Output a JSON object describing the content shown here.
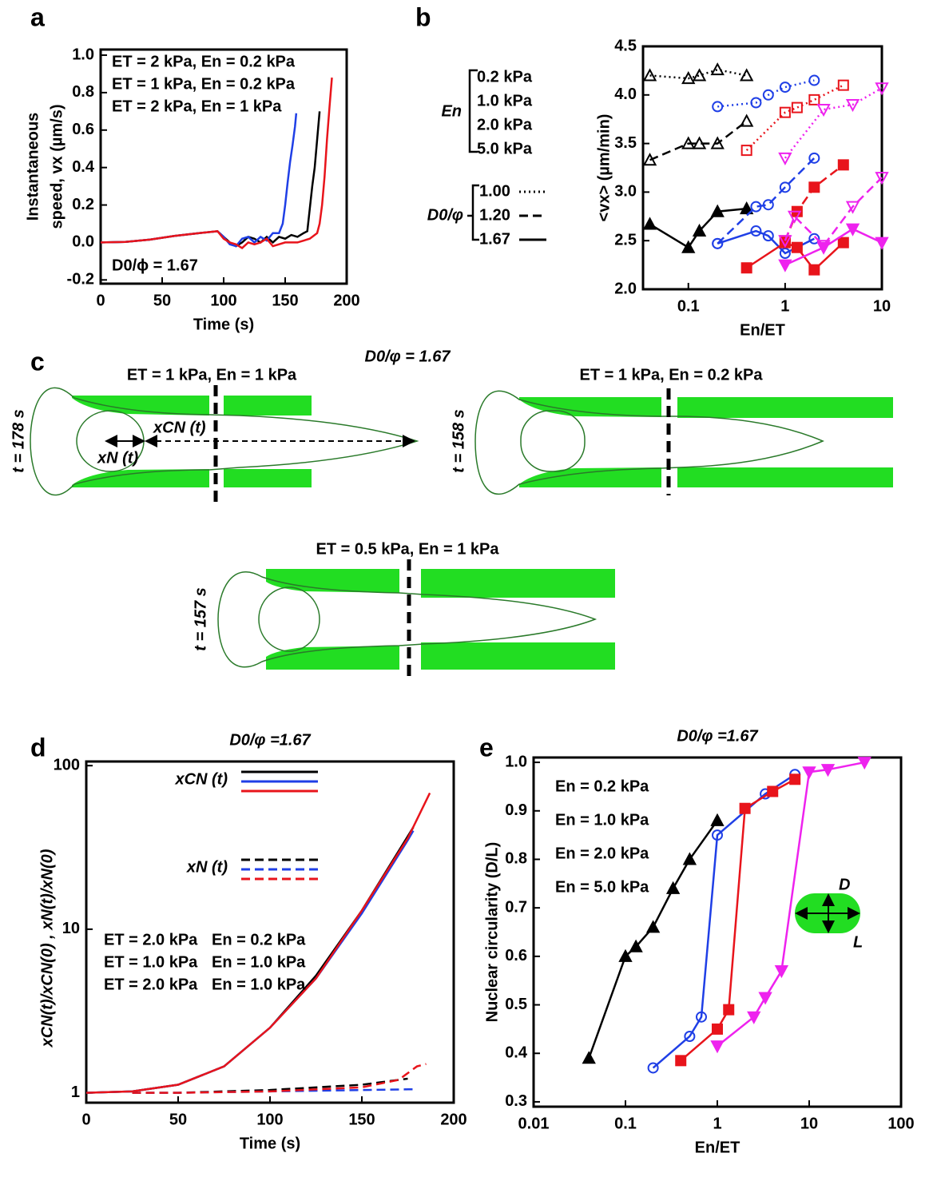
{
  "panel_labels": [
    "a",
    "b",
    "c",
    "d",
    "e"
  ],
  "chart_data": [
    {
      "type": "line",
      "xlabel": "Time (s)",
      "ylabel": [
        "Instantaneous",
        "speed, vx (µm/s)"
      ],
      "xlim": [
        0,
        200
      ],
      "xticks": [
        0,
        50,
        100,
        150,
        200
      ],
      "ylim": [
        -0.22,
        1.03
      ],
      "yticks": [
        -0.2,
        {
          "value": 0,
          "label": "0.0"
        },
        0.2,
        0.4,
        0.6,
        0.8,
        {
          "value": 1,
          "label": "1.0"
        }
      ],
      "annotation": "D0/ϕ = 1.67",
      "series": [
        {
          "name": "ET = 2 kPa, En = 0.2 kPa",
          "color": "#000000",
          "dash": "solid",
          "x": [
            0,
            20,
            40,
            60,
            80,
            95,
            100,
            105,
            110,
            115,
            120,
            125,
            130,
            135,
            140,
            145,
            150,
            155,
            160,
            165,
            168,
            170,
            172,
            174,
            176,
            178
          ],
          "values": [
            0,
            0.003,
            0.015,
            0.035,
            0.05,
            0.06,
            0.03,
            0.0,
            -0.02,
            0.0,
            0.03,
            0.02,
            0.0,
            0.03,
            0.0,
            0.03,
            0.02,
            0.04,
            0.03,
            0.05,
            0.06,
            0.18,
            0.3,
            0.4,
            0.55,
            0.7
          ]
        },
        {
          "name": "ET = 1 kPa, En = 0.2 kPa",
          "color": "#1f3fe6",
          "dash": "solid",
          "x": [
            0,
            20,
            40,
            60,
            80,
            95,
            100,
            105,
            110,
            115,
            120,
            125,
            130,
            135,
            140,
            145,
            148,
            150,
            152,
            154,
            156,
            158,
            159
          ],
          "values": [
            0,
            0.003,
            0.015,
            0.035,
            0.05,
            0.06,
            0.03,
            -0.01,
            -0.02,
            0.02,
            0.03,
            0.0,
            0.03,
            0.01,
            0.05,
            0.05,
            0.1,
            0.2,
            0.32,
            0.43,
            0.52,
            0.62,
            0.69
          ]
        },
        {
          "name": "ET = 2 kPa, En = 1 kPa",
          "color": "#e8141b",
          "dash": "solid",
          "x": [
            0,
            20,
            40,
            60,
            80,
            95,
            100,
            105,
            110,
            115,
            120,
            125,
            130,
            135,
            140,
            150,
            160,
            170,
            176,
            178,
            180,
            182,
            184,
            186,
            188
          ],
          "values": [
            0,
            0.003,
            0.015,
            0.035,
            0.05,
            0.06,
            0.02,
            0.0,
            -0.01,
            -0.03,
            0.0,
            -0.01,
            0.0,
            0.02,
            -0.02,
            0.0,
            0.0,
            0.02,
            0.05,
            0.1,
            0.2,
            0.35,
            0.55,
            0.72,
            0.88
          ]
        }
      ]
    },
    {
      "type": "line",
      "xscale": "log",
      "xlabel": "En/ET",
      "ylabel": "<vx> (µm/min)",
      "xlim": [
        0.034,
        10
      ],
      "xticks": [
        0.1,
        1,
        10
      ],
      "ylim": [
        2.0,
        4.5
      ],
      "yticks": [
        {
          "value": 2,
          "label": "2.0"
        },
        2.5,
        {
          "value": 3,
          "label": "3.0"
        },
        3.5,
        {
          "value": 4,
          "label": "4.0"
        },
        4.5
      ],
      "legend_groups": [
        {
          "title": "En",
          "entries": [
            {
              "label": "0.2 kPa",
              "color": "#000000"
            },
            {
              "label": "1.0 kPa",
              "color": "#1f3fe6"
            },
            {
              "label": "2.0 kPa",
              "color": "#e8141b"
            },
            {
              "label": "5.0 kPa",
              "color": "#ee22ee"
            }
          ]
        },
        {
          "title": "D0/φ",
          "entries": [
            {
              "label": "1.00",
              "dash": "dotted"
            },
            {
              "label": "1.20",
              "dash": "dashed"
            },
            {
              "label": "1.67",
              "dash": "solid"
            }
          ]
        }
      ],
      "series": [
        {
          "color": "#000000",
          "dash": "dotted",
          "marker": "^",
          "filled": false,
          "x": [
            0.04,
            0.1,
            0.13,
            0.2,
            0.4
          ],
          "values": [
            4.2,
            4.17,
            4.2,
            4.26,
            4.2
          ]
        },
        {
          "color": "#000000",
          "dash": "dashed",
          "marker": "^",
          "filled": false,
          "x": [
            0.04,
            0.1,
            0.13,
            0.2,
            0.4
          ],
          "values": [
            3.33,
            3.5,
            3.5,
            3.5,
            3.73
          ]
        },
        {
          "color": "#000000",
          "dash": "solid",
          "marker": "^",
          "filled": true,
          "x": [
            0.04,
            0.1,
            0.13,
            0.2,
            0.4
          ],
          "values": [
            2.67,
            2.43,
            2.6,
            2.8,
            2.83
          ]
        },
        {
          "color": "#1f3fe6",
          "dash": "dotted",
          "marker": "o",
          "filled": false,
          "x": [
            0.2,
            0.5,
            0.67,
            1,
            2
          ],
          "values": [
            3.88,
            3.92,
            4.0,
            4.08,
            4.15
          ]
        },
        {
          "color": "#1f3fe6",
          "dash": "dashed",
          "marker": "o",
          "filled": false,
          "x": [
            0.2,
            0.5,
            0.67,
            1,
            2
          ],
          "values": [
            2.47,
            2.85,
            2.87,
            3.05,
            3.35
          ]
        },
        {
          "color": "#1f3fe6",
          "dash": "solid",
          "marker": "o",
          "filled": false,
          "x": [
            0.2,
            0.5,
            0.67,
            1,
            2
          ],
          "values": [
            2.47,
            2.6,
            2.55,
            2.37,
            2.52
          ]
        },
        {
          "color": "#e8141b",
          "dash": "dotted",
          "marker": "s",
          "filled": false,
          "x": [
            0.4,
            1,
            1.33,
            2,
            4
          ],
          "values": [
            3.43,
            3.82,
            3.87,
            3.95,
            4.1
          ]
        },
        {
          "color": "#e8141b",
          "dash": "dashed",
          "marker": "s",
          "filled": true,
          "x": [
            1,
            1.33,
            2,
            4
          ],
          "values": [
            2.5,
            2.8,
            3.05,
            3.28
          ]
        },
        {
          "color": "#e8141b",
          "dash": "solid",
          "marker": "s",
          "filled": true,
          "x": [
            0.4,
            1,
            1.33,
            2,
            4
          ],
          "values": [
            2.22,
            2.48,
            2.43,
            2.2,
            2.48
          ]
        },
        {
          "color": "#ee22ee",
          "dash": "dotted",
          "marker": "v",
          "filled": false,
          "x": [
            1,
            2.5,
            5,
            10
          ],
          "values": [
            3.35,
            3.85,
            3.9,
            4.07
          ]
        },
        {
          "color": "#ee22ee",
          "dash": "dashed",
          "marker": "v",
          "filled": false,
          "x": [
            1,
            1.25,
            2.5,
            5,
            10
          ],
          "values": [
            2.5,
            2.75,
            2.45,
            2.85,
            3.15
          ]
        },
        {
          "color": "#ee22ee",
          "dash": "solid",
          "marker": "v",
          "filled": true,
          "x": [
            1,
            2.5,
            5,
            10
          ],
          "values": [
            2.25,
            2.43,
            2.62,
            2.48
          ]
        }
      ]
    },
    {
      "type": "line",
      "yscale": "log",
      "title": "D0/φ =1.67",
      "xlabel": "Time (s)",
      "ylabel": "xCN(t)/xCN(0) ,  xN(t)/xN(0)",
      "xlim": [
        0,
        200
      ],
      "xticks": [
        0,
        50,
        100,
        150,
        200
      ],
      "ylim": [
        0.87,
        106
      ],
      "yticks": [
        1,
        10,
        100
      ],
      "legend": [
        {
          "label": "xCN (t)",
          "dash": "solid"
        },
        {
          "label": "xN (t)",
          "dash": "dashed"
        }
      ],
      "annotations": [
        {
          "color": "#000000",
          "texts": [
            "ET = 2.0 kPa",
            "En = 0.2 kPa"
          ]
        },
        {
          "color": "#1f3fe6",
          "texts": [
            "ET = 1.0 kPa",
            "En = 1.0 kPa"
          ]
        },
        {
          "color": "#e8141b",
          "texts": [
            "ET = 2.0 kPa",
            "En = 1.0 kPa"
          ]
        }
      ],
      "series": [
        {
          "color": "#000000",
          "dash": "solid",
          "x": [
            0,
            25,
            50,
            75,
            100,
            125,
            150,
            175,
            178
          ],
          "values": [
            1,
            1.02,
            1.12,
            1.45,
            2.5,
            5.2,
            13,
            37,
            42
          ]
        },
        {
          "color": "#1f3fe6",
          "dash": "solid",
          "x": [
            0,
            25,
            50,
            75,
            100,
            125,
            150,
            175,
            178
          ],
          "values": [
            1,
            1.02,
            1.12,
            1.45,
            2.5,
            5,
            12.5,
            35,
            40
          ]
        },
        {
          "color": "#e8141b",
          "dash": "solid",
          "x": [
            0,
            25,
            50,
            75,
            100,
            125,
            150,
            175,
            187
          ],
          "values": [
            1,
            1.02,
            1.12,
            1.45,
            2.5,
            5,
            13,
            36,
            68
          ]
        },
        {
          "color": "#000000",
          "dash": "dashed",
          "x": [
            25,
            50,
            100,
            150,
            175
          ],
          "values": [
            1,
            1.0,
            1.04,
            1.12,
            1.22
          ]
        },
        {
          "color": "#1f3fe6",
          "dash": "dashed",
          "x": [
            25,
            50,
            100,
            150,
            175,
            180
          ],
          "values": [
            1,
            1.0,
            1.02,
            1.04,
            1.05,
            1.05
          ]
        },
        {
          "color": "#e8141b",
          "dash": "dashed",
          "x": [
            25,
            50,
            100,
            150,
            170,
            180,
            185
          ],
          "values": [
            1,
            1.0,
            1.02,
            1.08,
            1.2,
            1.45,
            1.5
          ]
        }
      ]
    },
    {
      "type": "line",
      "xscale": "log",
      "title": "D0/φ =1.67",
      "xlabel": "En/ET",
      "ylabel": "Nuclear circularity (D/L)",
      "xlim": [
        0.01,
        100
      ],
      "xticks": [
        0.01,
        0.1,
        1,
        10,
        100
      ],
      "ylim": [
        0.29,
        1.01
      ],
      "yticks": [
        0.3,
        0.4,
        0.5,
        0.6,
        0.7,
        0.8,
        0.9,
        {
          "value": 1,
          "label": "1.0"
        }
      ],
      "inset_labels": [
        "D",
        "L"
      ],
      "series": [
        {
          "name": "En = 0.2 kPa",
          "color": "#000000",
          "marker": "^",
          "filled": true,
          "dash": "solid",
          "x": [
            0.04,
            0.1,
            0.13,
            0.2,
            0.33,
            0.5,
            1
          ],
          "values": [
            0.39,
            0.6,
            0.62,
            0.66,
            0.74,
            0.8,
            0.88
          ]
        },
        {
          "name": "En = 1.0 kPa",
          "color": "#1f3fe6",
          "marker": "o",
          "filled": false,
          "dash": "solid",
          "x": [
            0.2,
            0.5,
            0.67,
            1,
            3.33,
            7
          ],
          "values": [
            0.37,
            0.435,
            0.475,
            0.85,
            0.935,
            0.975
          ]
        },
        {
          "name": "En = 2.0 kPa",
          "color": "#e8141b",
          "marker": "s",
          "filled": true,
          "dash": "solid",
          "x": [
            0.4,
            1,
            1.33,
            2,
            4,
            7
          ],
          "values": [
            0.385,
            0.45,
            0.49,
            0.905,
            0.94,
            0.965
          ]
        },
        {
          "name": "En = 5.0 kPa",
          "color": "#ee22ee",
          "marker": "v",
          "filled": true,
          "dash": "solid",
          "x": [
            1,
            2.5,
            3.33,
            5,
            10,
            16,
            40
          ],
          "values": [
            0.415,
            0.475,
            0.515,
            0.57,
            0.98,
            0.985,
            1.0
          ]
        }
      ]
    }
  ],
  "diagram": {
    "title": "D0/φ = 1.67",
    "panels": [
      {
        "label": "ET = 1 kPa, En = 1 kPa",
        "time": "t = 178 s",
        "arrows": [
          "xCN (t)",
          "xN (t)"
        ]
      },
      {
        "label": "ET = 1 kPa, En = 0.2 kPa",
        "time": "t = 158 s"
      },
      {
        "label": "ET = 0.5 kPa, En = 1 kPa",
        "time": "t = 157 s"
      }
    ]
  }
}
